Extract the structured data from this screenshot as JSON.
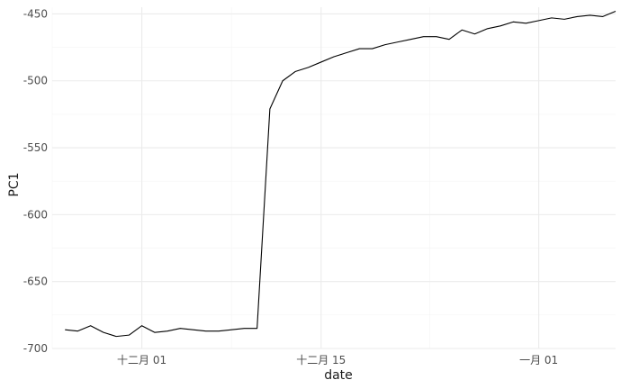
{
  "chart_data": {
    "type": "line",
    "xlabel": "date",
    "ylabel": "PC1",
    "x_axis": "date",
    "xlim": [
      "2023-11-24",
      "2024-01-07"
    ],
    "ylim": [
      -700,
      -445
    ],
    "grid": true,
    "legend": "none",
    "x_ticks": [
      {
        "date": "2023-12-01",
        "label": "十二月 01"
      },
      {
        "date": "2023-12-15",
        "label": "十二月 15"
      },
      {
        "date": "2024-01-01",
        "label": "一月 01"
      }
    ],
    "y_ticks": [
      -700,
      -650,
      -600,
      -550,
      -500,
      -450
    ],
    "line_color": "#000000",
    "series": [
      {
        "dates": [
          "2023-11-25",
          "2023-11-26",
          "2023-11-27",
          "2023-11-28",
          "2023-11-29",
          "2023-11-30",
          "2023-12-01",
          "2023-12-02",
          "2023-12-03",
          "2023-12-04",
          "2023-12-05",
          "2023-12-06",
          "2023-12-07",
          "2023-12-08",
          "2023-12-09",
          "2023-12-10",
          "2023-12-11",
          "2023-12-12",
          "2023-12-13",
          "2023-12-14",
          "2023-12-15",
          "2023-12-16",
          "2023-12-17",
          "2023-12-18",
          "2023-12-19",
          "2023-12-20",
          "2023-12-21",
          "2023-12-22",
          "2023-12-23",
          "2023-12-24",
          "2023-12-25",
          "2023-12-26",
          "2023-12-27",
          "2023-12-28",
          "2023-12-29",
          "2023-12-30",
          "2023-12-31",
          "2024-01-01",
          "2024-01-02",
          "2024-01-03",
          "2024-01-04",
          "2024-01-05",
          "2024-01-06",
          "2024-01-07"
        ],
        "values": [
          -686,
          -687,
          -683,
          -688,
          -691,
          -690,
          -683,
          -688,
          -687,
          -685,
          -686,
          -687,
          -687,
          -686,
          -685,
          -685,
          -521,
          -500,
          -493,
          -490,
          -486,
          -482,
          -479,
          -476,
          -476,
          -473,
          -471,
          -469,
          -467,
          -467,
          -469,
          -462,
          -465,
          -461,
          -459,
          -456,
          -457,
          -455,
          -453,
          -454,
          -452,
          -451,
          -452,
          -448
        ]
      }
    ]
  }
}
